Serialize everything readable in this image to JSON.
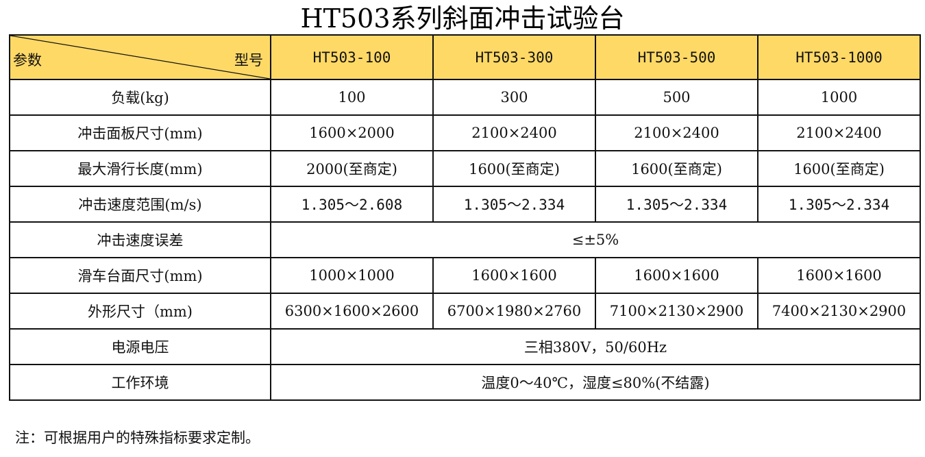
{
  "title": "HT503系列斜面冲击试验台",
  "table": {
    "corner": {
      "param_label": "参数",
      "model_label": "型号"
    },
    "models": [
      "HT503-100",
      "HT503-300",
      "HT503-500",
      "HT503-1000"
    ],
    "rows": [
      {
        "label": "负载(kg)",
        "values": [
          "100",
          "300",
          "500",
          "1000"
        ]
      },
      {
        "label": "冲击面板尺寸(mm)",
        "values": [
          "1600×2000",
          "2100×2400",
          "2100×2400",
          "2100×2400"
        ]
      },
      {
        "label": "最大滑行长度(mm)",
        "values": [
          "2000(至商定)",
          "1600(至商定)",
          "1600(至商定)",
          "1600(至商定)"
        ]
      },
      {
        "label": "冲击速度范围(m/s)",
        "values": [
          "1.305～2.608",
          "1.305～2.334",
          "1.305～2.334",
          "1.305～2.334"
        ]
      },
      {
        "label": "冲击速度误差",
        "merged": "≤±5%"
      },
      {
        "label": "滑车台面尺寸(mm)",
        "values": [
          "1000×1000",
          "1600×1600",
          "1600×1600",
          "1600×1600"
        ]
      },
      {
        "label": "外形尺寸（mm)",
        "values": [
          "6300×1600×2600",
          "6700×1980×2760",
          "7100×2130×2900",
          "7400×2130×2900"
        ]
      },
      {
        "label": "电源电压",
        "merged": "三相380V，50/60Hz"
      },
      {
        "label": "工作环境",
        "merged": "温度0～40℃，湿度≤80%(不结露)"
      }
    ]
  },
  "note": "注：可根据用户的特殊指标要求定制。",
  "colors": {
    "header_fill": "#ffd966",
    "border": "#111111"
  }
}
